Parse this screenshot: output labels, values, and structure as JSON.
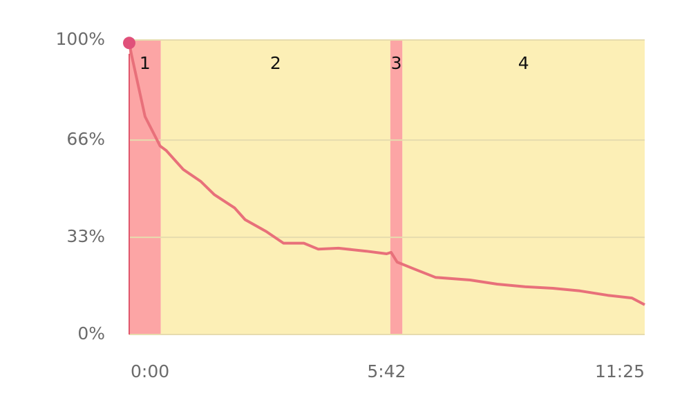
{
  "chart_data": {
    "type": "line",
    "x": [
      0,
      3,
      21,
      41,
      49,
      72,
      95,
      113,
      140,
      154,
      182,
      205,
      232,
      251,
      278,
      315,
      342,
      348,
      356,
      379,
      407,
      453,
      489,
      526,
      563,
      599,
      636,
      668,
      685
    ],
    "values": [
      99,
      95,
      74,
      64,
      62.5,
      56,
      52,
      47.5,
      43,
      39,
      35,
      31,
      31,
      29,
      29.3,
      28.3,
      27.4,
      27.9,
      24.6,
      22.2,
      19.4,
      18.5,
      17.1,
      16.2,
      15.7,
      14.8,
      13.3,
      12.4,
      10.1
    ],
    "color": "#e8707a",
    "xlim": [
      0,
      685
    ],
    "ylim": [
      0,
      100
    ],
    "xticks": [
      {
        "value": 0,
        "label": "0:00"
      },
      {
        "value": 342,
        "label": "5:42"
      },
      {
        "value": 685,
        "label": "11:25"
      }
    ],
    "yticks": [
      {
        "value": 0,
        "label": "0%"
      },
      {
        "value": 33,
        "label": "33%"
      },
      {
        "value": 66,
        "label": "66%"
      },
      {
        "value": 100,
        "label": "100%"
      }
    ],
    "grid": true,
    "regions": [
      {
        "label": "1",
        "start": 0,
        "end": 42,
        "color": "#fca5a5"
      },
      {
        "label": "2",
        "start": 42,
        "end": 347,
        "color": "#fcefb6"
      },
      {
        "label": "3",
        "start": 347,
        "end": 363,
        "color": "#fca5a5"
      },
      {
        "label": "4",
        "start": 363,
        "end": 685,
        "color": "#fcefb6"
      }
    ]
  }
}
